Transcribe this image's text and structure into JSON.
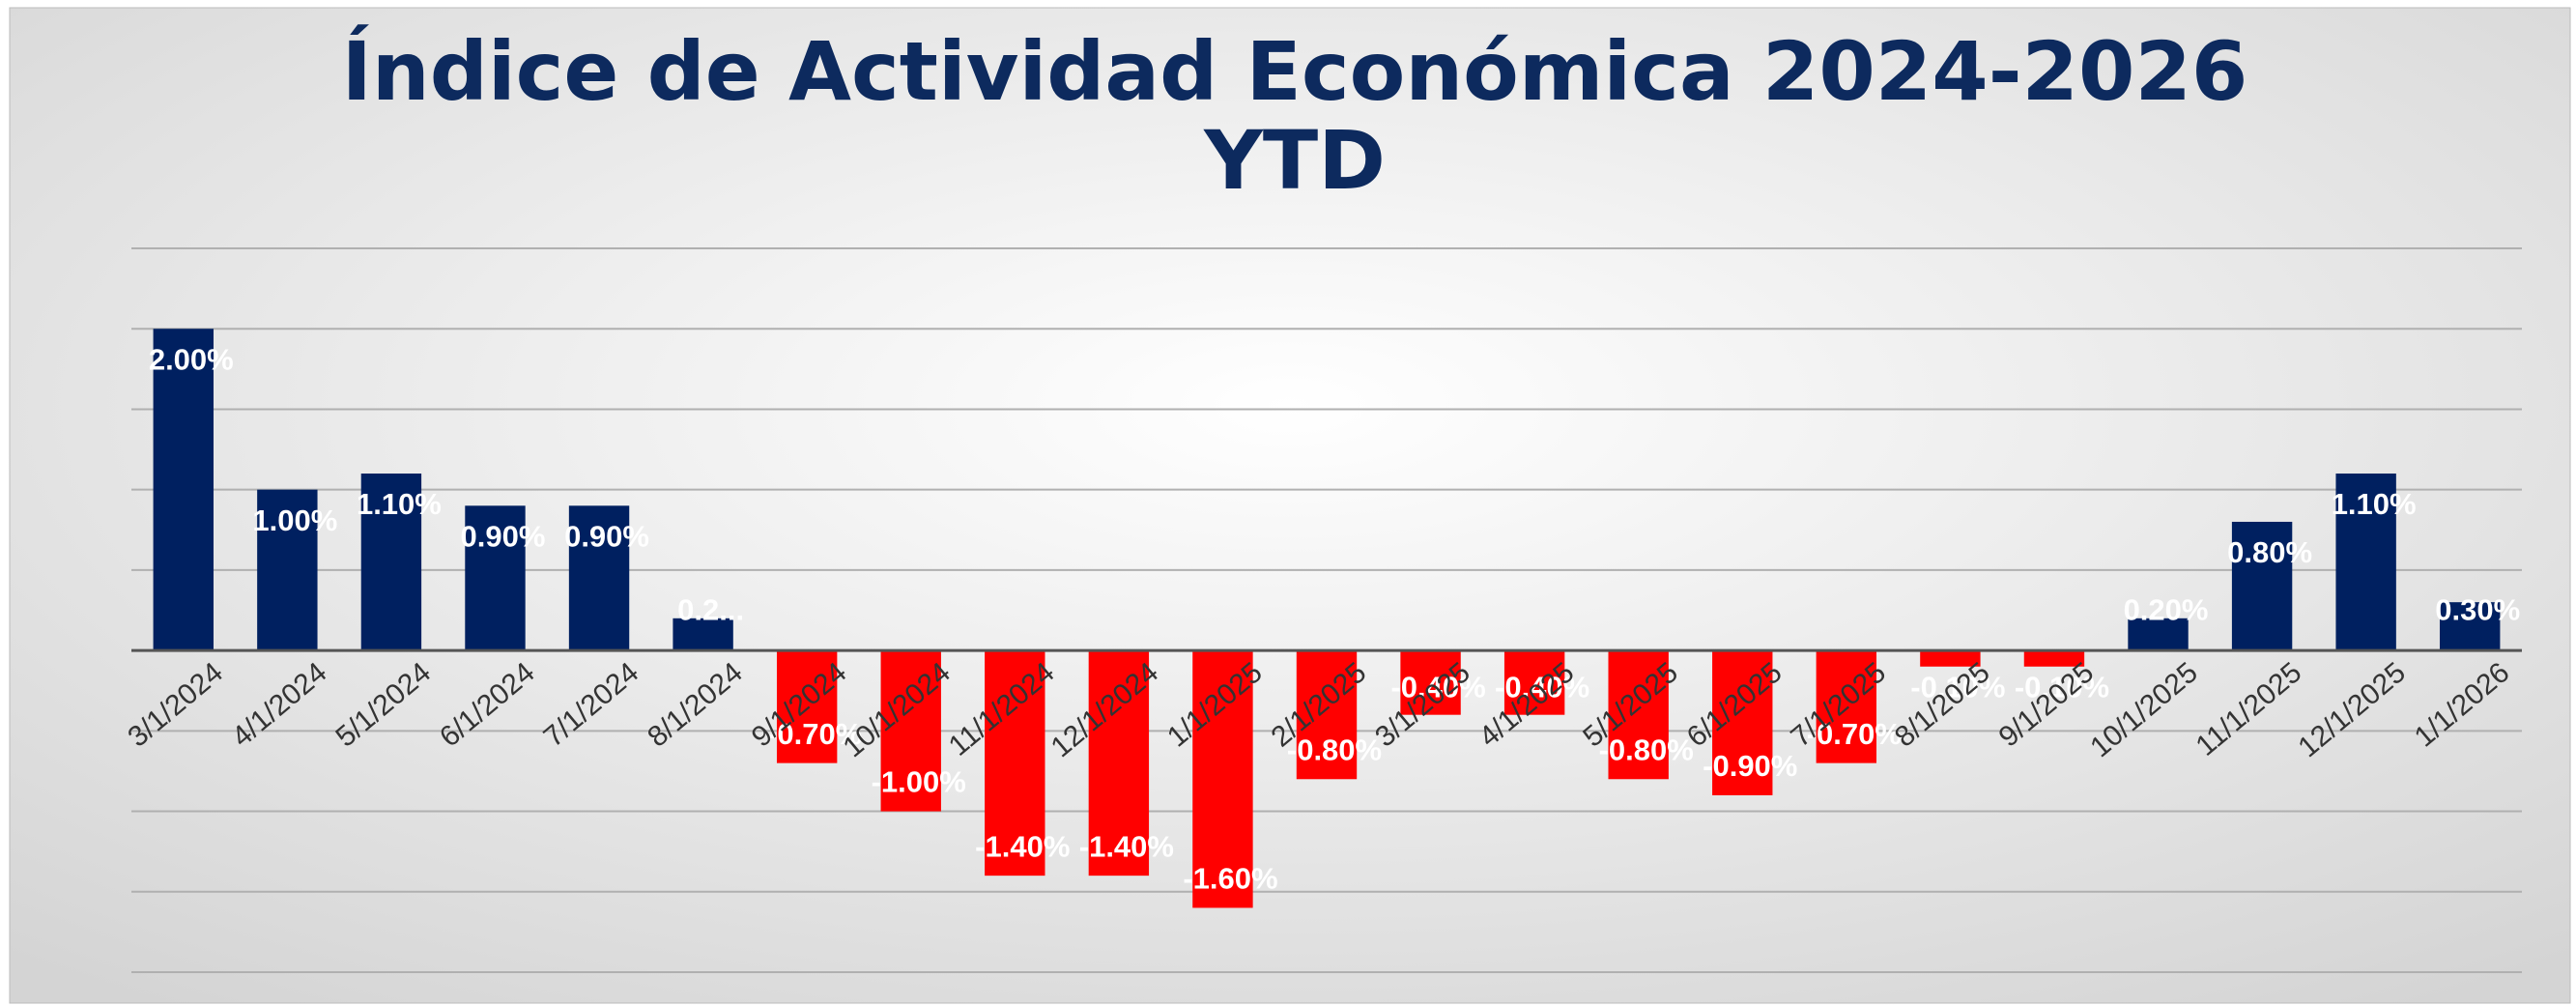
{
  "chart_data": {
    "type": "bar",
    "title": "Índice de Actividad Económica 2024-2026",
    "subtitle": "YTD",
    "categories": [
      "3/1/2024",
      "4/1/2024",
      "5/1/2024",
      "6/1/2024",
      "7/1/2024",
      "8/1/2024",
      "9/1/2024",
      "10/1/2024",
      "11/1/2024",
      "12/1/2024",
      "1/1/2025",
      "2/1/2025",
      "3/1/2025",
      "4/1/2025",
      "5/1/2025",
      "6/1/2025",
      "7/1/2025",
      "8/1/2025",
      "9/1/2025",
      "10/1/2025",
      "11/1/2025",
      "12/1/2025",
      "1/1/2026"
    ],
    "values": [
      2.0,
      1.0,
      1.1,
      0.9,
      0.9,
      0.2,
      -0.7,
      -1.0,
      -1.4,
      -1.4,
      -1.6,
      -0.8,
      -0.4,
      -0.4,
      -0.8,
      -0.9,
      -0.7,
      -0.1,
      -0.1,
      0.2,
      0.8,
      1.1,
      0.3
    ],
    "value_labels": [
      "2.00%",
      "1.00%",
      "1.10%",
      "0.90%",
      "0.90%",
      "0.2...",
      "-0.70%",
      "-1.00%",
      "-1.40%",
      "-1.40%",
      "-1.60%",
      "-0.80%",
      "-0.40%",
      "-0.40%",
      "-0.80%",
      "-0.90%",
      "-0.70%",
      "-0.10%",
      "-0.10%",
      "0.20%",
      "0.80%",
      "1.10%",
      "0.30%"
    ],
    "colors": {
      "positive": "#002060",
      "negative": "#ff0000"
    },
    "ylim": [
      -2,
      2.5
    ],
    "yticks": [
      -2,
      -1.5,
      -1,
      -0.5,
      0,
      0.5,
      1,
      1.5,
      2,
      2.5
    ],
    "grid": true
  }
}
